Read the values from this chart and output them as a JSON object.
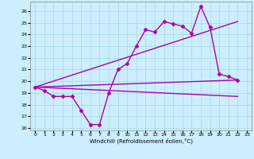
{
  "title": "",
  "xlabel": "Windchill (Refroidissement éolien,°C)",
  "background_color": "#cceeff",
  "grid_color": "#aadddd",
  "line_color": "#aa00aa",
  "xlim": [
    -0.5,
    23.5
  ],
  "ylim": [
    15.8,
    26.8
  ],
  "yticks": [
    16,
    17,
    18,
    19,
    20,
    21,
    22,
    23,
    24,
    25,
    26
  ],
  "xticks": [
    0,
    1,
    2,
    3,
    4,
    5,
    6,
    7,
    8,
    9,
    10,
    11,
    12,
    13,
    14,
    15,
    16,
    17,
    18,
    19,
    20,
    21,
    22,
    23
  ],
  "series": [
    {
      "x": [
        0,
        1,
        2,
        3,
        4,
        5,
        6,
        7,
        8,
        9,
        10,
        11,
        12,
        13,
        14,
        15,
        16,
        17,
        18,
        19,
        20,
        21,
        22
      ],
      "y": [
        19.5,
        19.2,
        18.7,
        18.7,
        18.7,
        17.5,
        16.3,
        16.3,
        19.0,
        21.0,
        21.5,
        23.0,
        24.4,
        24.2,
        25.1,
        24.9,
        24.7,
        24.1,
        26.4,
        24.6,
        20.6,
        20.4,
        20.1
      ],
      "marker": "D",
      "markersize": 2.5,
      "linewidth": 1.0
    },
    {
      "x": [
        0,
        22
      ],
      "y": [
        19.5,
        20.1
      ],
      "marker": null,
      "linewidth": 1.0
    },
    {
      "x": [
        0,
        22
      ],
      "y": [
        19.5,
        25.1
      ],
      "marker": null,
      "linewidth": 1.0
    },
    {
      "x": [
        0,
        22
      ],
      "y": [
        19.5,
        18.7
      ],
      "marker": null,
      "linewidth": 1.0
    }
  ]
}
